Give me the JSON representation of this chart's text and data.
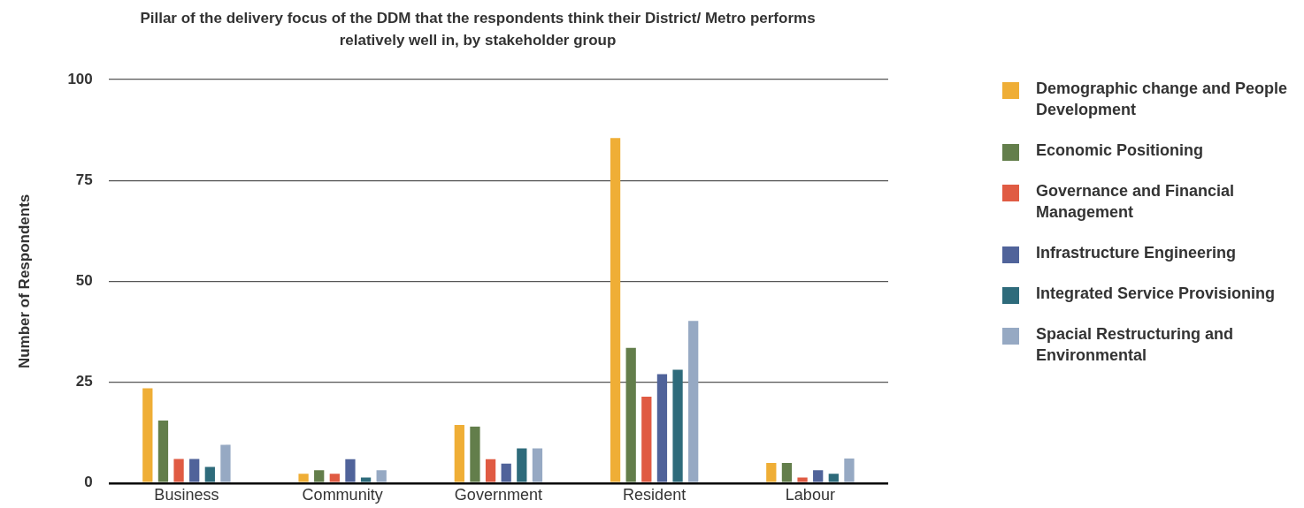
{
  "chart_data": {
    "type": "bar",
    "title": "Pillar of the delivery focus of the DDM that the respondents think their District/ Metro performs relatively well in, by stakeholder group",
    "ylabel": "Number of Respondents",
    "categories": [
      "Business",
      "Community",
      "Government",
      "Resident",
      "Labour"
    ],
    "series": [
      {
        "name": "Demographic change and People Development",
        "color": "#efae36",
        "values": [
          23.5,
          2.3,
          14.4,
          85.5,
          5
        ]
      },
      {
        "name": "Economic Positioning",
        "color": "#637e4b",
        "values": [
          15.5,
          3.2,
          14,
          33.5,
          5
        ]
      },
      {
        "name": "Governance and Financial Management",
        "color": "#e05b43",
        "values": [
          6,
          2.3,
          5.9,
          21.4,
          1.4
        ]
      },
      {
        "name": "Infrastructure Engineering",
        "color": "#50639a",
        "values": [
          6,
          5.9,
          4.8,
          27,
          3.2
        ]
      },
      {
        "name": "Integrated Service Provisioning",
        "color": "#2e6b7b",
        "values": [
          4,
          1.4,
          8.6,
          28.1,
          2.3
        ]
      },
      {
        "name": "Spacial Restructuring and Environmental",
        "color": "#96a9c3",
        "values": [
          9.5,
          3.2,
          8.6,
          40.2,
          6.1
        ]
      }
    ],
    "ylim": [
      0,
      100
    ],
    "yticks": [
      0,
      25,
      50,
      75,
      100
    ],
    "grid": "y",
    "legend": "right"
  }
}
